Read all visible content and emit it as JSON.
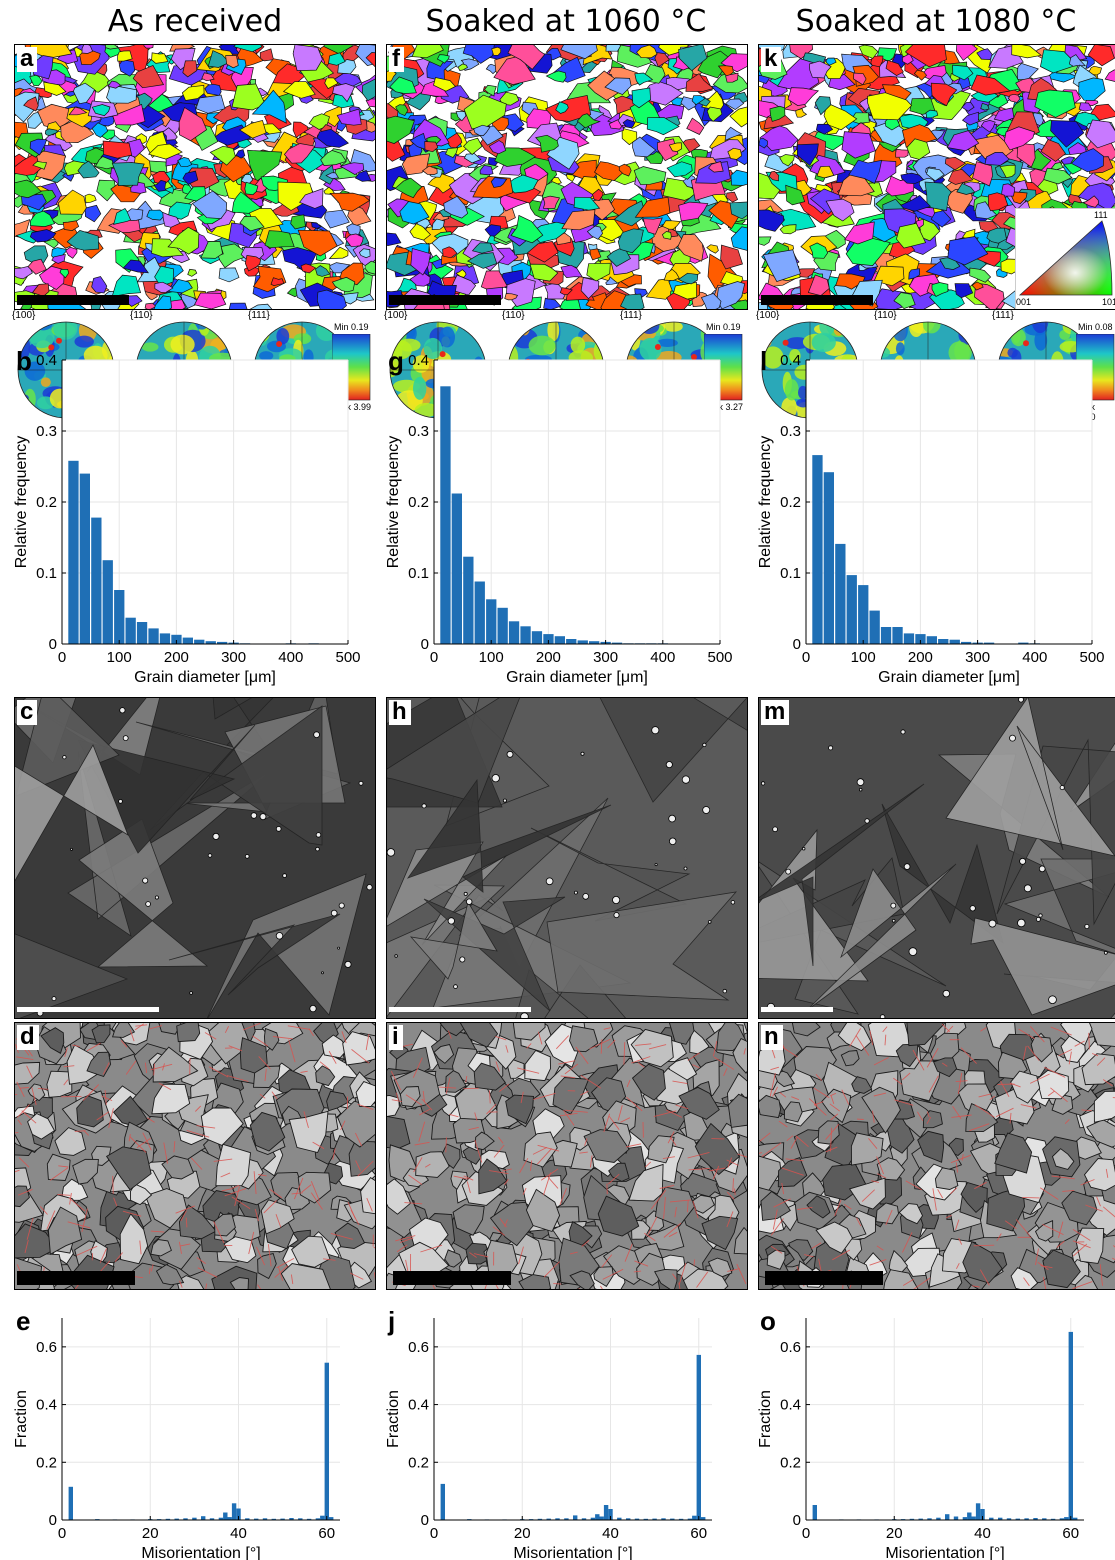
{
  "columns": [
    {
      "title": "As received",
      "ebsd_label": "a",
      "hist_label": "b",
      "sem_label": "c",
      "bound_label": "d",
      "mis_label": "e",
      "pf_labels": [
        "{100}",
        "{110}",
        "{111}"
      ],
      "pf_min": "Min 0.19",
      "pf_max": "Max 3.99",
      "seed": 11
    },
    {
      "title": "Soaked at 1060 °C",
      "ebsd_label": "f",
      "hist_label": "g",
      "sem_label": "h",
      "bound_label": "i",
      "mis_label": "j",
      "pf_labels": [
        "{100}",
        "{110}",
        "{111}"
      ],
      "pf_min": "Min 0.19",
      "pf_max": "Max 3.27",
      "seed": 37
    },
    {
      "title": "Soaked at 1080 °C",
      "ebsd_label": "k",
      "hist_label": "l",
      "sem_label": "m",
      "bound_label": "n",
      "mis_label": "o",
      "pf_labels": [
        "{100}",
        "{110}",
        "{111}"
      ],
      "pf_min": "Min 0.08",
      "pf_max": "Max 4.80",
      "seed": 73
    }
  ],
  "ipf_key": {
    "corner_111": "111",
    "corner_001": "001",
    "corner_101": "101"
  },
  "colors": {
    "bar": "#1f6fb5",
    "grid": "#e6e6e6",
    "twin": "#d9534f"
  },
  "chart_data": [
    {
      "type": "bar",
      "panel": "b",
      "xlabel": "Grain diameter [μm]",
      "ylabel": "Relative frequency",
      "xlim": [
        0,
        500
      ],
      "ylim": [
        0,
        0.4
      ],
      "xticks": [
        0,
        100,
        200,
        300,
        400,
        500
      ],
      "yticks": [
        0,
        0.1,
        0.2,
        0.3,
        0.4
      ],
      "bin_width": 20,
      "bin_centers": [
        20,
        40,
        60,
        80,
        100,
        120,
        140,
        160,
        180,
        200,
        220,
        240,
        260,
        280,
        300,
        320,
        340,
        360,
        380,
        400,
        420,
        440
      ],
      "values": [
        0.258,
        0.24,
        0.178,
        0.118,
        0.076,
        0.037,
        0.031,
        0.022,
        0.015,
        0.013,
        0.009,
        0.006,
        0.004,
        0.003,
        0.002,
        0.001,
        0.0,
        0.0,
        0.0,
        0.001,
        0.0,
        0.001
      ]
    },
    {
      "type": "bar",
      "panel": "g",
      "xlabel": "Grain diameter [μm]",
      "ylabel": "Relative frequency",
      "xlim": [
        0,
        500
      ],
      "ylim": [
        0,
        0.4
      ],
      "xticks": [
        0,
        100,
        200,
        300,
        400,
        500
      ],
      "yticks": [
        0,
        0.1,
        0.2,
        0.3,
        0.4
      ],
      "bin_width": 20,
      "bin_centers": [
        20,
        40,
        60,
        80,
        100,
        120,
        140,
        160,
        180,
        200,
        220,
        240,
        260,
        280,
        300,
        320,
        340,
        360,
        380,
        400
      ],
      "values": [
        0.363,
        0.212,
        0.123,
        0.088,
        0.063,
        0.051,
        0.032,
        0.025,
        0.018,
        0.014,
        0.011,
        0.007,
        0.005,
        0.004,
        0.003,
        0.002,
        0.001,
        0.001,
        0.001,
        0.001
      ]
    },
    {
      "type": "bar",
      "panel": "l",
      "xlabel": "Grain diameter [μm]",
      "ylabel": "Relative frequency",
      "xlim": [
        0,
        500
      ],
      "ylim": [
        0,
        0.4
      ],
      "xticks": [
        0,
        100,
        200,
        300,
        400,
        500
      ],
      "yticks": [
        0,
        0.1,
        0.2,
        0.3,
        0.4
      ],
      "bin_width": 20,
      "bin_centers": [
        20,
        40,
        60,
        80,
        100,
        120,
        140,
        160,
        180,
        200,
        220,
        240,
        260,
        280,
        300,
        320,
        340,
        360,
        380,
        400
      ],
      "values": [
        0.266,
        0.242,
        0.141,
        0.097,
        0.083,
        0.047,
        0.024,
        0.024,
        0.015,
        0.014,
        0.011,
        0.007,
        0.006,
        0.003,
        0.002,
        0.002,
        0.0,
        0.0,
        0.002,
        0.001
      ]
    },
    {
      "type": "bar",
      "panel": "e",
      "xlabel": "Misorientation [°]",
      "ylabel": "Fraction",
      "xlim": [
        0,
        63
      ],
      "ylim": [
        0,
        0.7
      ],
      "xticks": [
        0,
        20,
        40,
        60
      ],
      "yticks": [
        0,
        0.2,
        0.4,
        0.6
      ],
      "x": [
        2,
        8,
        12,
        16,
        20,
        22,
        24,
        26,
        28,
        30,
        32,
        34,
        36,
        37,
        38,
        39,
        40,
        42,
        44,
        46,
        48,
        50,
        52,
        54,
        56,
        58,
        59,
        60,
        61
      ],
      "values": [
        0.115,
        0.003,
        0.002,
        0.002,
        0.003,
        0.003,
        0.004,
        0.005,
        0.006,
        0.008,
        0.013,
        0.006,
        0.008,
        0.026,
        0.01,
        0.058,
        0.04,
        0.006,
        0.005,
        0.006,
        0.004,
        0.005,
        0.007,
        0.006,
        0.004,
        0.006,
        0.015,
        0.545,
        0.01
      ]
    },
    {
      "type": "bar",
      "panel": "j",
      "xlabel": "Misorientation [°]",
      "ylabel": "Fraction",
      "xlim": [
        0,
        63
      ],
      "ylim": [
        0,
        0.7
      ],
      "xticks": [
        0,
        20,
        40,
        60
      ],
      "yticks": [
        0,
        0.2,
        0.4,
        0.6
      ],
      "x": [
        2,
        8,
        12,
        16,
        20,
        22,
        24,
        26,
        28,
        30,
        32,
        34,
        36,
        37,
        38,
        39,
        40,
        42,
        44,
        46,
        48,
        50,
        52,
        54,
        56,
        58,
        59,
        60,
        61
      ],
      "values": [
        0.125,
        0.003,
        0.002,
        0.002,
        0.003,
        0.003,
        0.004,
        0.005,
        0.006,
        0.006,
        0.016,
        0.006,
        0.008,
        0.02,
        0.012,
        0.052,
        0.038,
        0.008,
        0.006,
        0.005,
        0.004,
        0.005,
        0.006,
        0.005,
        0.004,
        0.005,
        0.015,
        0.572,
        0.01
      ]
    },
    {
      "type": "bar",
      "panel": "o",
      "xlabel": "Misorientation [°]",
      "ylabel": "Fraction",
      "xlim": [
        0,
        63
      ],
      "ylim": [
        0,
        0.7
      ],
      "xticks": [
        0,
        20,
        40,
        60
      ],
      "yticks": [
        0,
        0.2,
        0.4,
        0.6
      ],
      "x": [
        2,
        8,
        12,
        16,
        20,
        22,
        24,
        26,
        28,
        30,
        32,
        34,
        36,
        37,
        38,
        39,
        40,
        42,
        44,
        46,
        48,
        50,
        52,
        54,
        56,
        58,
        59,
        60,
        61
      ],
      "values": [
        0.052,
        0.002,
        0.002,
        0.002,
        0.003,
        0.003,
        0.004,
        0.005,
        0.006,
        0.008,
        0.02,
        0.012,
        0.01,
        0.026,
        0.012,
        0.058,
        0.038,
        0.008,
        0.008,
        0.006,
        0.005,
        0.006,
        0.007,
        0.006,
        0.004,
        0.006,
        0.01,
        0.652,
        0.008
      ]
    }
  ]
}
